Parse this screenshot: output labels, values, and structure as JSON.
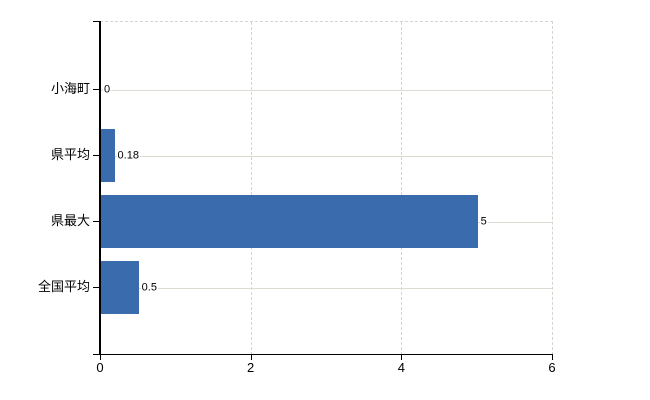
{
  "chart_data": {
    "type": "bar",
    "orientation": "horizontal",
    "title": "",
    "xlabel": "",
    "ylabel": "",
    "categories": [
      "小海町",
      "県平均",
      "県最大",
      "全国平均"
    ],
    "values": [
      0,
      0.18,
      5,
      0.5
    ],
    "value_labels": [
      "0",
      "0.18",
      "5",
      "0.5"
    ],
    "xlim": [
      0,
      6
    ],
    "xticks": [
      0,
      2,
      4,
      6
    ],
    "xtick_labels": [
      "0",
      "2",
      "4",
      "6"
    ],
    "legend": "none",
    "grid": {
      "vertical_gridlines": "dashed, at x ticks",
      "horizontal_gridlines": "solid, at category centers"
    },
    "colors": {
      "bar": "#3a6bad",
      "axis": "#000000",
      "horizontal_gridline": "#d9ded2",
      "vertical_gridline": "#d9d2ce",
      "text": "#000000",
      "background": "#ffffff"
    }
  }
}
